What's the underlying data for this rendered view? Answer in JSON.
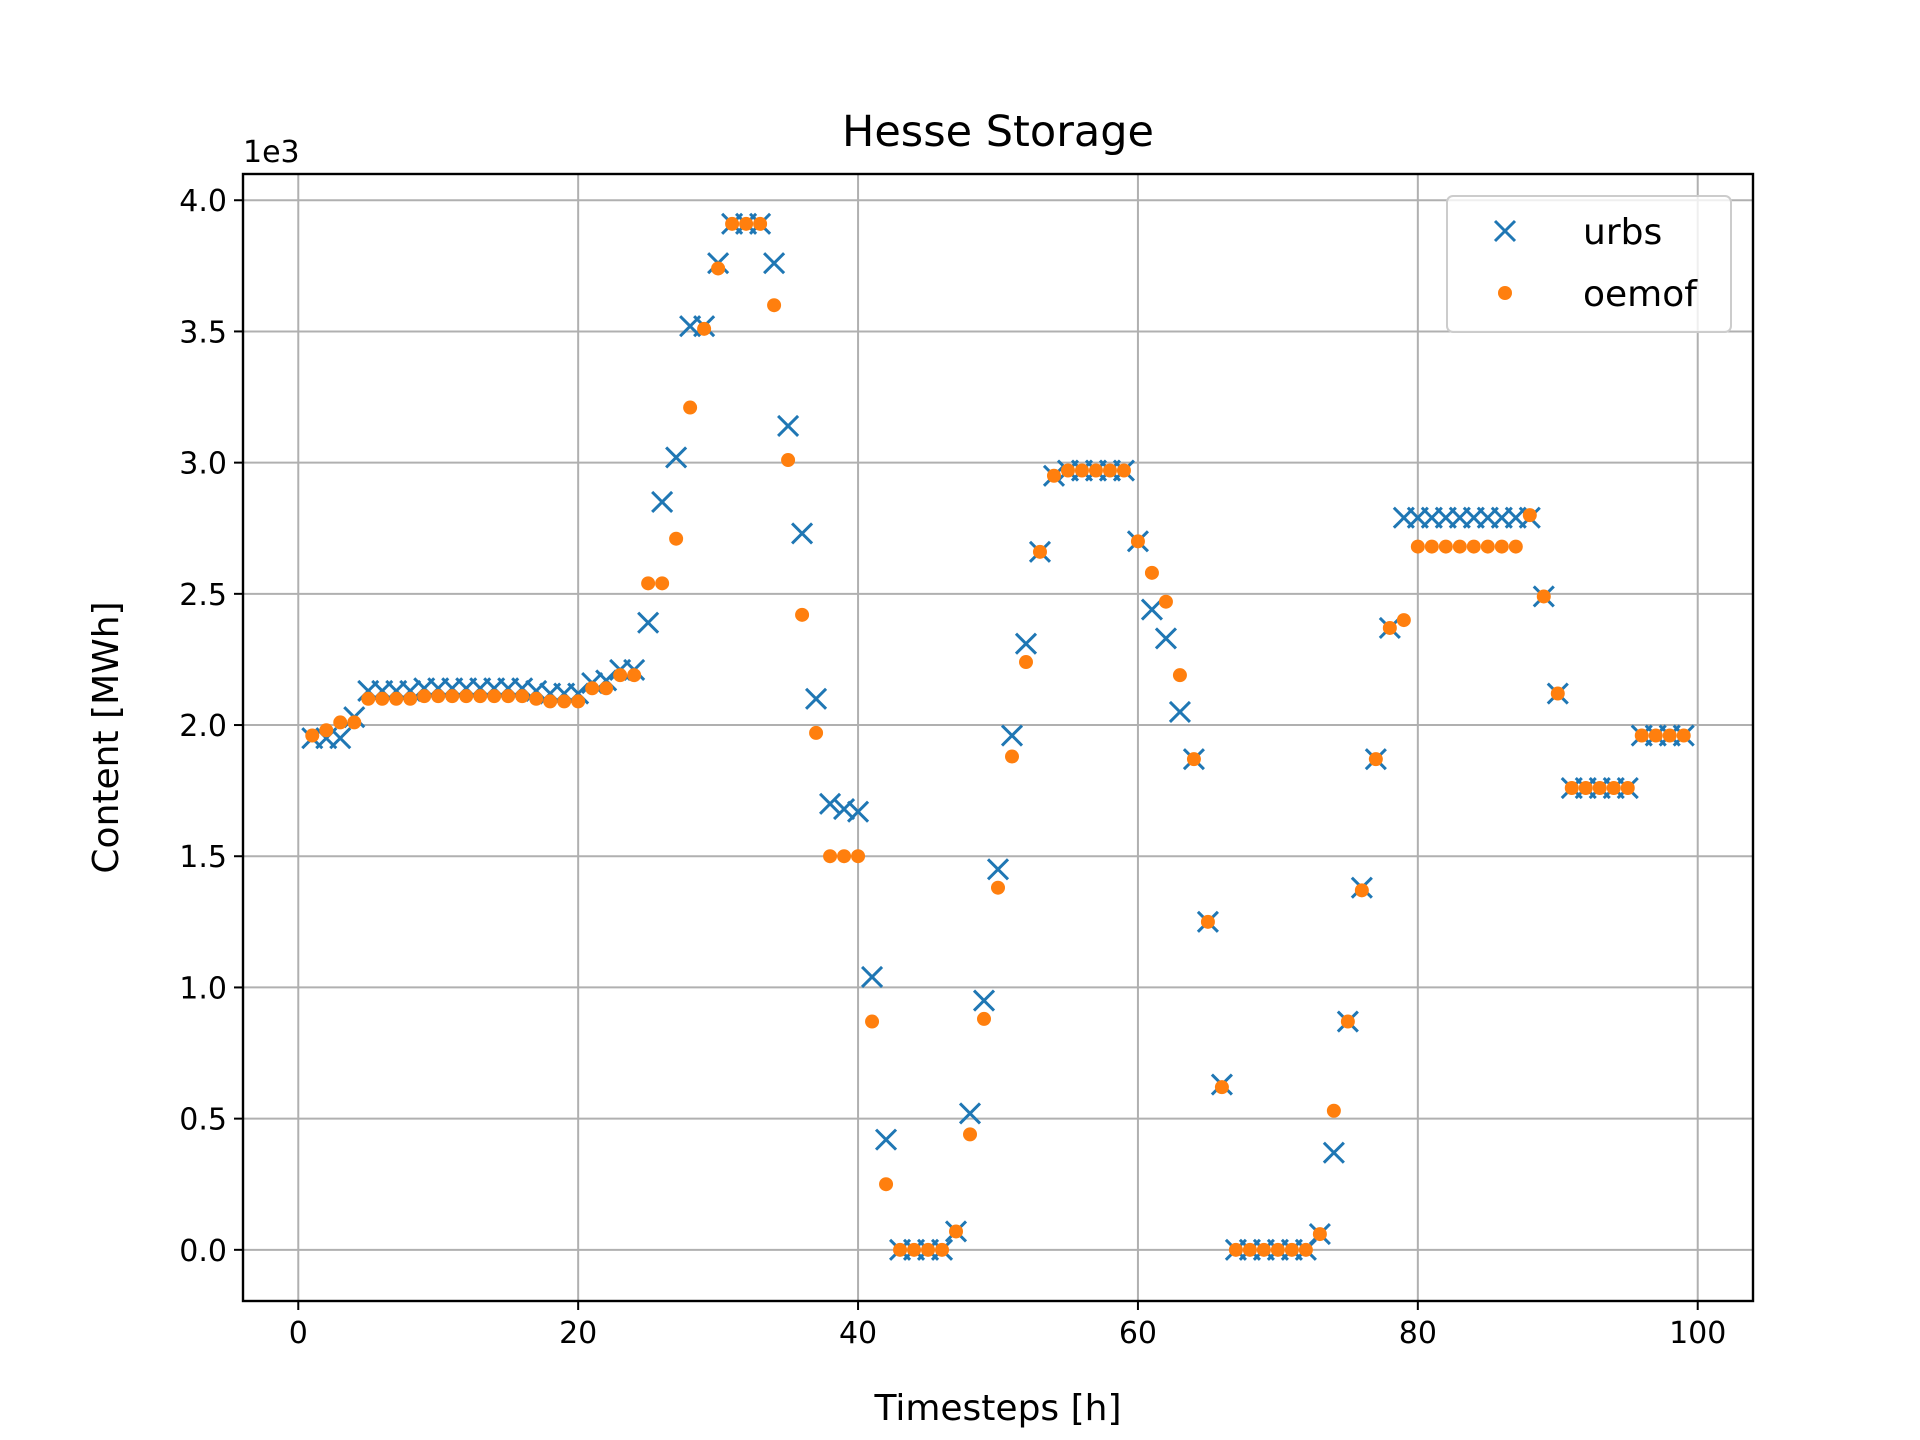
{
  "chart_data": {
    "type": "scatter",
    "title": "Hesse Storage",
    "xlabel": "Timesteps [h]",
    "ylabel": "Content [MWh]",
    "y_offset_text": "1e3",
    "xlim": [
      -3.95,
      103.95
    ],
    "ylim": [
      -0.195,
      4.1
    ],
    "xticks": [
      0,
      20,
      40,
      60,
      80,
      100
    ],
    "xtick_labels": [
      "0",
      "20",
      "40",
      "60",
      "80",
      "100"
    ],
    "yticks": [
      0,
      0.5,
      1,
      1.5,
      2,
      2.5,
      3,
      3.5,
      4
    ],
    "ytick_labels": [
      "0.0",
      "0.5",
      "1.0",
      "1.5",
      "2.0",
      "2.5",
      "3.0",
      "3.5",
      "4.0"
    ],
    "grid": true,
    "legend_position": "upper right",
    "x": [
      1,
      2,
      3,
      4,
      5,
      6,
      7,
      8,
      9,
      10,
      11,
      12,
      13,
      14,
      15,
      16,
      17,
      18,
      19,
      20,
      21,
      22,
      23,
      24,
      25,
      26,
      27,
      28,
      29,
      30,
      31,
      32,
      33,
      34,
      35,
      36,
      37,
      38,
      39,
      40,
      41,
      42,
      43,
      44,
      45,
      46,
      47,
      48,
      49,
      50,
      51,
      52,
      53,
      54,
      55,
      56,
      57,
      58,
      59,
      60,
      61,
      62,
      63,
      64,
      65,
      66,
      67,
      68,
      69,
      70,
      71,
      72,
      73,
      74,
      75,
      76,
      77,
      78,
      79,
      80,
      81,
      82,
      83,
      84,
      85,
      86,
      87,
      88,
      89,
      90,
      91,
      92,
      93,
      94,
      95,
      96,
      97,
      98,
      99
    ],
    "series": [
      {
        "name": "urbs",
        "marker": "x",
        "color": "#1f77b4",
        "values": [
          1.95,
          1.95,
          1.95,
          2.03,
          2.13,
          2.13,
          2.13,
          2.13,
          2.14,
          2.14,
          2.14,
          2.14,
          2.14,
          2.14,
          2.14,
          2.14,
          2.13,
          2.12,
          2.12,
          2.12,
          2.16,
          2.17,
          2.21,
          2.21,
          2.39,
          2.85,
          3.02,
          3.52,
          3.52,
          3.76,
          3.91,
          3.91,
          3.91,
          3.76,
          3.14,
          2.73,
          2.1,
          1.7,
          1.68,
          1.67,
          1.04,
          0.42,
          0.0,
          0.0,
          0.0,
          0.0,
          0.07,
          0.52,
          0.95,
          1.45,
          1.96,
          2.31,
          2.66,
          2.95,
          2.97,
          2.97,
          2.97,
          2.97,
          2.97,
          2.7,
          2.44,
          2.33,
          2.05,
          1.87,
          1.25,
          0.63,
          0.0,
          0.0,
          0.0,
          0.0,
          0.0,
          0.0,
          0.06,
          0.37,
          0.87,
          1.38,
          1.87,
          2.37,
          2.79,
          2.79,
          2.79,
          2.79,
          2.79,
          2.79,
          2.79,
          2.79,
          2.79,
          2.79,
          2.49,
          2.12,
          1.76,
          1.76,
          1.76,
          1.76,
          1.76,
          1.96,
          1.96,
          1.96,
          1.96
        ]
      },
      {
        "name": "oemof",
        "marker": "o",
        "color": "#ff7f0e",
        "values": [
          1.96,
          1.98,
          2.01,
          2.01,
          2.1,
          2.1,
          2.1,
          2.1,
          2.11,
          2.11,
          2.11,
          2.11,
          2.11,
          2.11,
          2.11,
          2.11,
          2.1,
          2.09,
          2.09,
          2.09,
          2.14,
          2.14,
          2.19,
          2.19,
          2.54,
          2.54,
          2.71,
          3.21,
          3.51,
          3.74,
          3.91,
          3.91,
          3.91,
          3.6,
          3.01,
          2.42,
          1.97,
          1.5,
          1.5,
          1.5,
          0.87,
          0.25,
          0.0,
          0.0,
          0.0,
          0.0,
          0.07,
          0.44,
          0.88,
          1.38,
          1.88,
          2.24,
          2.66,
          2.95,
          2.97,
          2.97,
          2.97,
          2.97,
          2.97,
          2.7,
          2.58,
          2.47,
          2.19,
          1.87,
          1.25,
          0.62,
          0.0,
          0.0,
          0.0,
          0.0,
          0.0,
          0.0,
          0.06,
          0.53,
          0.87,
          1.37,
          1.87,
          2.37,
          2.4,
          2.68,
          2.68,
          2.68,
          2.68,
          2.68,
          2.68,
          2.68,
          2.68,
          2.8,
          2.49,
          2.12,
          1.76,
          1.76,
          1.76,
          1.76,
          1.76,
          1.96,
          1.96,
          1.96,
          1.96
        ]
      }
    ]
  }
}
